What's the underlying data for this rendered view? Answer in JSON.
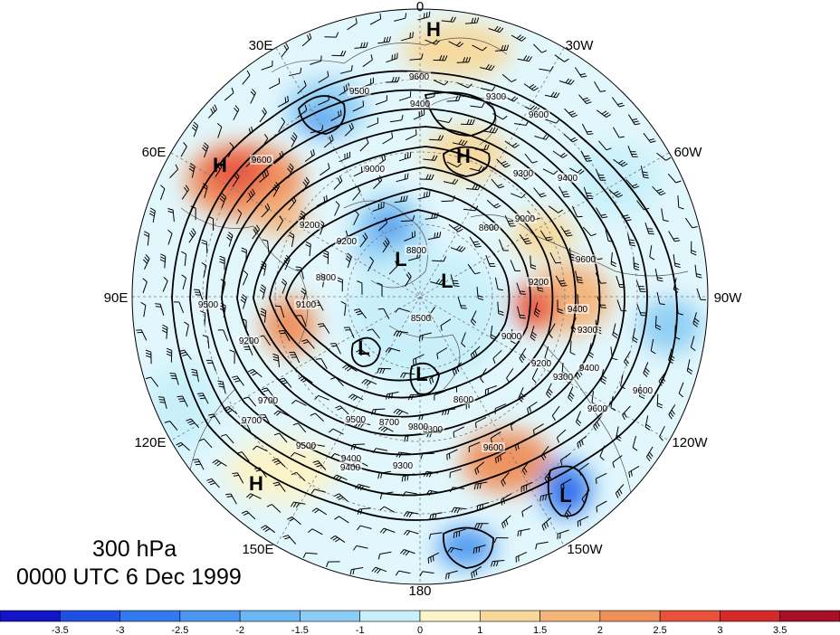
{
  "map": {
    "projection": "north-polar-stereographic",
    "level_label": "300 hPa",
    "valid_time": "0000 UTC 6 Dec 1999",
    "longitude_labels": [
      "0",
      "30W",
      "60W",
      "90W",
      "120W",
      "150W",
      "180",
      "150E",
      "120E",
      "90E",
      "60E",
      "30E"
    ],
    "pressure_centers": [
      {
        "type": "H",
        "where": "north-atlantic-top"
      },
      {
        "type": "H",
        "where": "greenland-east"
      },
      {
        "type": "H",
        "where": "eurasia-60E"
      },
      {
        "type": "H",
        "where": "pacific-130E"
      },
      {
        "type": "L",
        "where": "polar-1"
      },
      {
        "type": "L",
        "where": "polar-2"
      },
      {
        "type": "L",
        "where": "siberia"
      },
      {
        "type": "L",
        "where": "chukchi"
      },
      {
        "type": "L",
        "where": "gulf-of-alaska"
      }
    ],
    "contour_labels": [
      "9600",
      "9500",
      "9400",
      "9300",
      "9600",
      "9300",
      "9400",
      "9200",
      "9200",
      "9000",
      "8800",
      "8600",
      "9000",
      "9600",
      "9300",
      "9600",
      "9400",
      "9500",
      "9200",
      "9600",
      "8800",
      "9700",
      "9500",
      "9400",
      "9300",
      "9700",
      "9800",
      "9600",
      "9500",
      "9400",
      "9300",
      "9200",
      "9100",
      "8800",
      "8600",
      "8500",
      "9000",
      "9200",
      "9400",
      "9600",
      "8700"
    ],
    "anomaly_colors": {
      "neg_strong": "#1e50e6",
      "neg_mid": "#4b96f0",
      "neg_weak": "#8ccdf5",
      "neg_faint": "#c8f0fa",
      "pos_faint": "#fcf3c8",
      "pos_weak": "#f7d89a",
      "pos_mid": "#ef8f5a",
      "pos_strong": "#e8523a"
    }
  },
  "colorbar": {
    "ticks": [
      "-3.5",
      "-3",
      "-2.5",
      "-2",
      "-1.5",
      "-1",
      "0",
      "1",
      "1.5",
      "2",
      "2.5",
      "3",
      "3.5"
    ],
    "colors": [
      "#1414c8",
      "#1e50e6",
      "#3278ee",
      "#4b96f0",
      "#6bb6f5",
      "#8ccdf5",
      "#c8f0fa",
      "#fcf3c8",
      "#f7d89a",
      "#f4b47a",
      "#ef8f5a",
      "#e8523a",
      "#d62a2a",
      "#a8102a"
    ]
  }
}
